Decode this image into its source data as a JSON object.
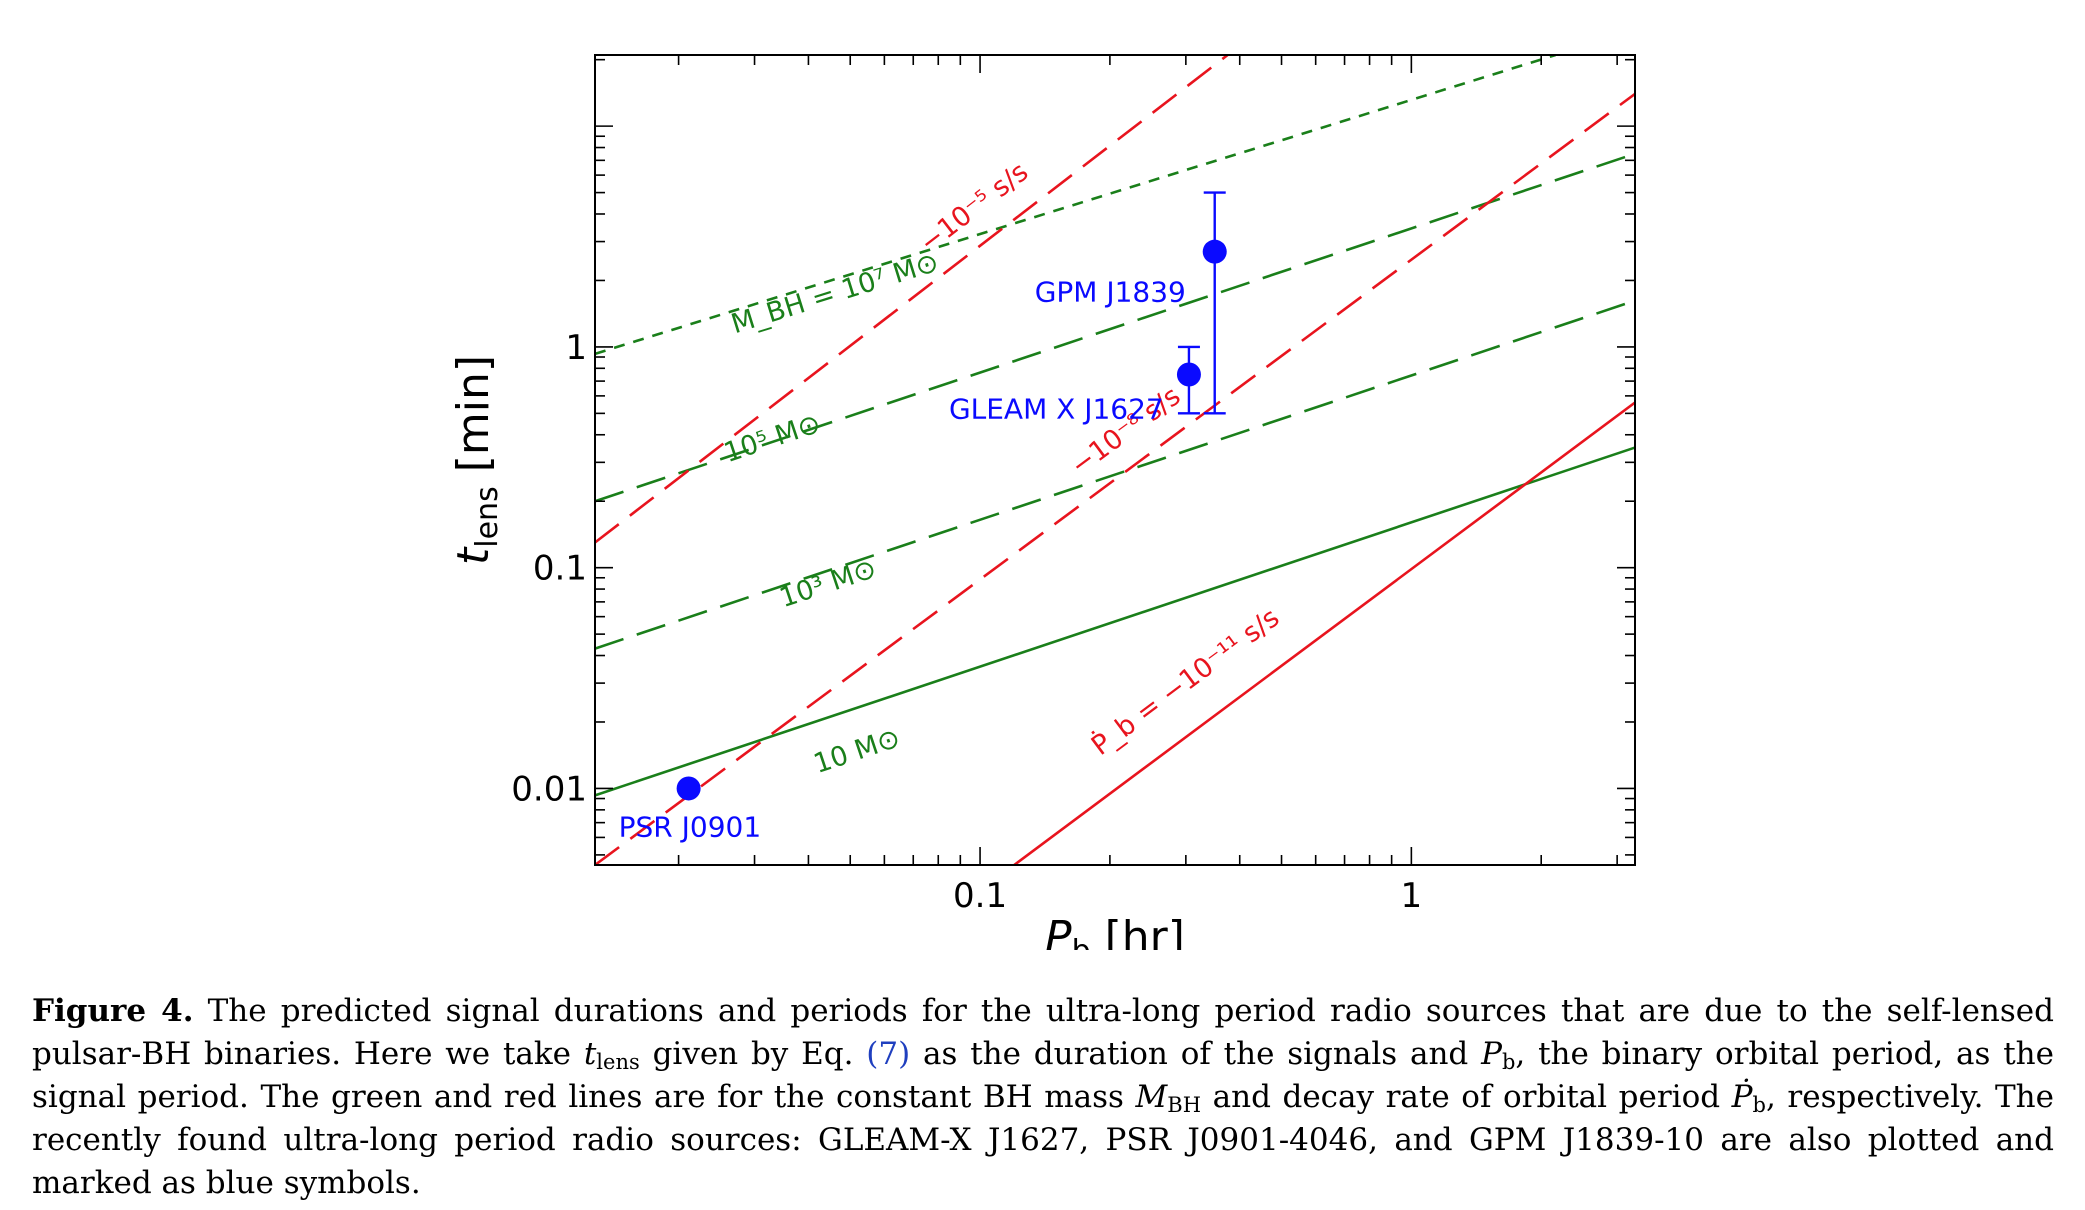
{
  "chart_data": {
    "type": "line",
    "xlabel": "P_b [hr]",
    "ylabel": "t_lens [min]",
    "xscale": "log",
    "yscale": "log",
    "xlim": [
      0.0128,
      3.3
    ],
    "ylim": [
      0.0045,
      21
    ],
    "xticks": [
      {
        "v": 0.1,
        "label": "0.1"
      },
      {
        "v": 1,
        "label": "1"
      }
    ],
    "yticks": [
      {
        "v": 0.01,
        "label": "0.01"
      },
      {
        "v": 0.1,
        "label": "0.1"
      },
      {
        "v": 1,
        "label": "1"
      }
    ],
    "grid": false,
    "series": [
      {
        "kind": "mass",
        "name": "10 M⊙",
        "color": "#1a7f1a",
        "dash": "solid",
        "x": [
          0.0128,
          3.3
        ],
        "y": [
          0.0093,
          0.35
        ]
      },
      {
        "kind": "mass",
        "name": "10³ M⊙",
        "color": "#1a7f1a",
        "dash": "long",
        "x": [
          0.0128,
          3.3
        ],
        "y": [
          0.043,
          1.62
        ]
      },
      {
        "kind": "mass",
        "name": "10⁵ M⊙",
        "color": "#1a7f1a",
        "dash": "long",
        "x": [
          0.0128,
          3.3
        ],
        "y": [
          0.2,
          7.5
        ]
      },
      {
        "kind": "mass",
        "name": "M_BH = 10⁷ M⊙",
        "color": "#1a7f1a",
        "dash": "short",
        "x": [
          0.0128,
          2.16
        ],
        "y": [
          0.93,
          21
        ]
      },
      {
        "kind": "decay",
        "name": "Ṗ_b = −10⁻¹¹ s/s",
        "color": "#e8141e",
        "dash": "solid",
        "x": [
          0.12,
          3.3
        ],
        "y": [
          0.0045,
          0.56
        ]
      },
      {
        "kind": "decay",
        "name": "−10⁻⁸ s/s",
        "color": "#e8141e",
        "dash": "long",
        "x": [
          0.0128,
          3.3
        ],
        "y": [
          0.0045,
          14
        ]
      },
      {
        "kind": "decay",
        "name": "−10⁻⁵ s/s",
        "color": "#e8141e",
        "dash": "long",
        "x": [
          0.0128,
          0.375
        ],
        "y": [
          0.13,
          21
        ]
      }
    ],
    "points": [
      {
        "name": "PSR J0901",
        "x": 0.0211,
        "y": 0.01,
        "ylo": 0.01,
        "yhi": 0.01
      },
      {
        "name": "GLEAM X J1627",
        "x": 0.305,
        "y": 0.75,
        "ylo": 0.5,
        "yhi": 1.0
      },
      {
        "name": "GPM J1839",
        "x": 0.35,
        "y": 2.7,
        "ylo": 0.5,
        "yhi": 5.0
      }
    ],
    "annotations": [
      {
        "name": "M_BH = 10⁷ M⊙",
        "x": 0.027,
        "y": 1.15
      },
      {
        "name": "10⁵ M⊙",
        "x": 0.026,
        "y": 0.3
      },
      {
        "name": "10³ M⊙",
        "x": 0.035,
        "y": 0.066
      },
      {
        "name": "10 M⊙",
        "x": 0.042,
        "y": 0.0117
      },
      {
        "name": "−10⁻⁵ s/s",
        "x": 0.076,
        "y": 2.65
      },
      {
        "name": "−10⁻⁸ s/s",
        "x": 0.17,
        "y": 0.26
      },
      {
        "name": "Ṗ_b = −10⁻¹¹ s/s",
        "x": 0.19,
        "y": 0.014
      }
    ]
  },
  "caption": {
    "label": "Figure 4.",
    "text_1": "The predicted signal durations and periods for the ultra-long period radio sources that are due to the self-lensed pulsar-BH binaries. Here we take",
    "t_lens": "t",
    "t_lens_sub": "lens",
    "text_2": "given by Eq.",
    "eq_ref": "(7)",
    "text_3": "as the duration of the signals and",
    "pb": "P",
    "pb_sub": "b",
    "text_4": ", the binary orbital period, as the signal period. The green and red lines are for the constant BH mass",
    "mbh": "M",
    "mbh_sub": "BH",
    "text_5": "and decay rate of orbital period",
    "pbdot": "Ṗ",
    "pbdot_sub": "b",
    "text_6": ", respectively. The recently found ultra-long period radio sources: GLEAM-X J1627, PSR J0901-4046, and GPM J1839-10 are also plotted and marked as blue symbols."
  }
}
